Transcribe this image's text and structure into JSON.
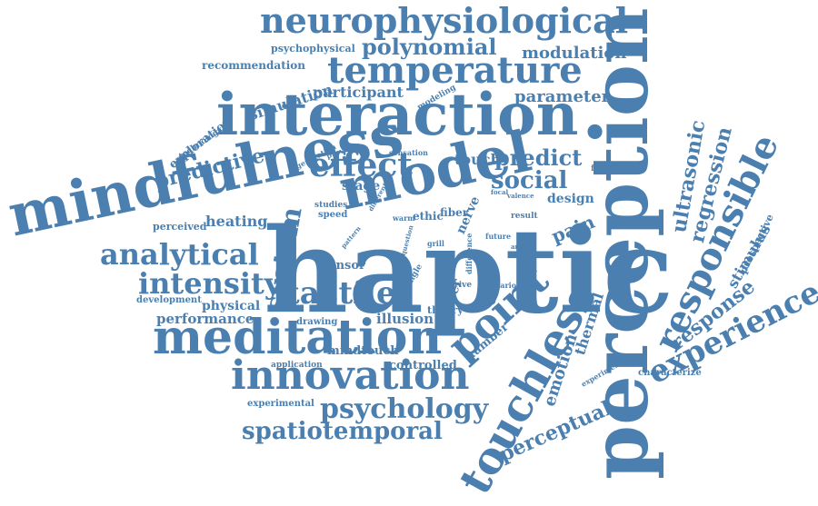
{
  "palette": {
    "word_color": "#4a7fb0",
    "background": "#ffffff"
  },
  "words": {
    "haptic": "haptic",
    "perception": "perception",
    "interaction": "interaction",
    "mindfulness": "mindfulness",
    "model": "model",
    "meditation": "meditation",
    "innovation": "innovation",
    "touchless": "touchless",
    "temperature": "temperature",
    "neurophysiological": "neurophysiological",
    "responsible": "responsible",
    "experience": "experience",
    "point": "point",
    "effect": "effect",
    "analytical": "analytical",
    "tactile": "tactile",
    "intensity": "intensity",
    "system": "system",
    "psychology": "psychology",
    "spatiotemporal": "spatiotemporal",
    "polynomial": "polynomial",
    "predictive": "predictive",
    "social": "social",
    "predict": "predict",
    "ultrasonic": "ultrasonic",
    "regression": "regression",
    "response": "response",
    "perceptual": "perceptual",
    "emotion": "emotion",
    "thermal": "thermal",
    "pain": "pain",
    "stimulus": "stimulus",
    "modulation": "modulation",
    "parameter": "parameter",
    "participant": "participant",
    "simulation": "simulation",
    "exploration": "exploration",
    "heating": "heating",
    "physical": "physical",
    "performance": "performance",
    "controlled": "controlled",
    "illusion": "illusion",
    "mindtouch": "mindtouch",
    "number": "number",
    "touch": "touch",
    "stage": "stage",
    "sensor": "sensor",
    "design": "design",
    "user": "user",
    "nerve": "nerve",
    "ethic": "ethic",
    "fiber": "fiber",
    "psychophysical": "psychophysical",
    "recommendation": "recommendation",
    "prospective": "prospective",
    "characterize": "characterize",
    "experimental": "experimental",
    "application": "application",
    "development": "development",
    "perceived": "perceived",
    "drawing": "drawing",
    "theory": "theory",
    "technology": "technology",
    "framework": "framework",
    "modeling": "modeling",
    "generation": "generation",
    "previous": "previous",
    "sensation": "sensation",
    "studies": "studies",
    "speed": "speed",
    "warm": "warm",
    "result": "result",
    "valence": "valence",
    "focal": "focal",
    "future": "future",
    "answer": "answer",
    "derive": "derive",
    "scenario": "scenario",
    "single": "single",
    "difference": "difference",
    "question": "question",
    "grill": "grill",
    "pattern": "pattern",
    "different": "different",
    "experiment": "experiment"
  }
}
